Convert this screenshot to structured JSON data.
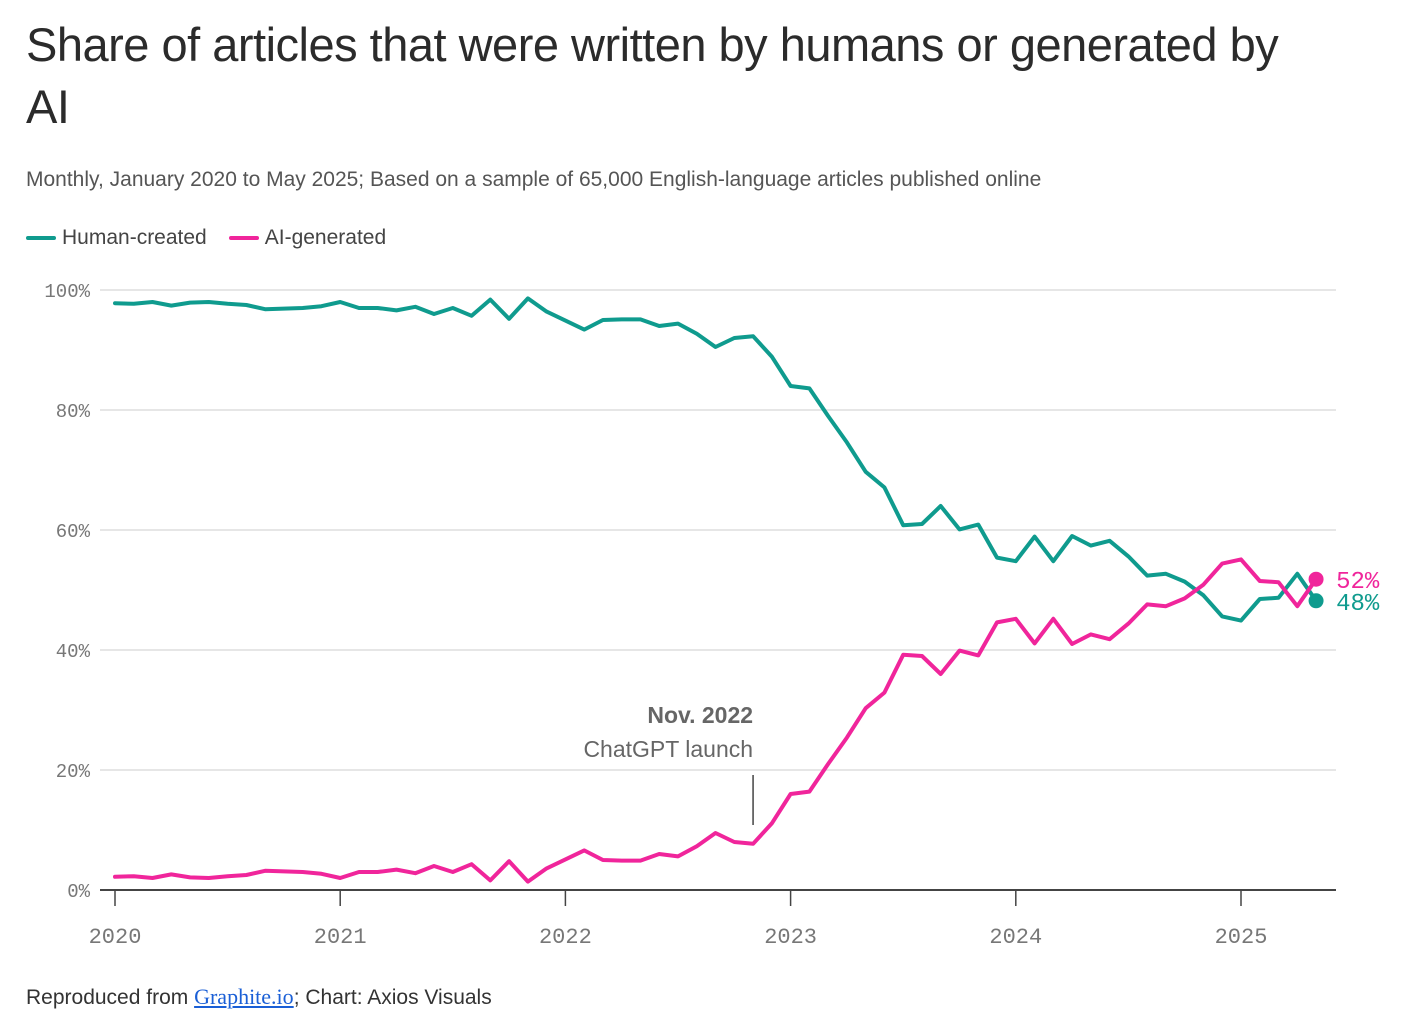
{
  "title": "Share of articles that were written by humans or generated by AI",
  "subtitle": "Monthly, January 2020 to May 2025; Based on a sample of 65,000 English-language articles published online",
  "footer": {
    "prefix": "Reproduced from ",
    "link": "Graphite.io",
    "suffix": "; Chart: Axios Visuals"
  },
  "colors": {
    "human": "#0f9b8e",
    "ai": "#f0259b",
    "grid": "#dddddd",
    "axis": "#444444"
  },
  "chart_data": {
    "type": "line",
    "title": "Share of articles that were written by humans or generated by AI",
    "xlabel": "",
    "ylabel": "",
    "ylim": [
      0,
      100
    ],
    "yticks": [
      0,
      20,
      40,
      60,
      80,
      100
    ],
    "ytick_labels": [
      "0%",
      "20%",
      "40%",
      "60%",
      "80%",
      "100%"
    ],
    "xticks": [
      2020,
      2021,
      2022,
      2023,
      2024,
      2025
    ],
    "xtick_labels": [
      "2020",
      "2021",
      "2022",
      "2023",
      "2024",
      "2025"
    ],
    "x_unit": "months since Jan 2020",
    "annotation": {
      "x": 34,
      "title": "Nov. 2022",
      "text": "ChatGPT launch"
    },
    "end_labels": {
      "ai": "52%",
      "human": "48%"
    },
    "series": [
      {
        "name": "Human-created",
        "key": "human",
        "values": [
          97.8,
          97.7,
          98.0,
          97.4,
          97.9,
          98.0,
          97.7,
          97.5,
          96.8,
          96.9,
          97.0,
          97.3,
          98.0,
          97.0,
          97.0,
          96.6,
          97.2,
          96.0,
          97.0,
          95.7,
          98.4,
          95.2,
          98.6,
          96.4,
          94.9,
          93.4,
          95.0,
          95.1,
          95.1,
          94.0,
          94.4,
          92.7,
          90.5,
          92.0,
          92.3,
          88.9,
          84.0,
          83.6,
          79.0,
          74.6,
          69.7,
          67.1,
          60.8,
          61.0,
          64.0,
          60.1,
          60.9,
          55.4,
          54.8,
          58.9,
          54.8,
          59.0,
          57.4,
          58.2,
          55.6,
          52.4,
          52.7,
          51.4,
          49.1,
          45.6,
          44.9,
          48.5,
          48.7,
          52.7,
          48.2
        ]
      },
      {
        "name": "AI-generated",
        "key": "ai",
        "values": [
          2.2,
          2.3,
          2.0,
          2.6,
          2.1,
          2.0,
          2.3,
          2.5,
          3.2,
          3.1,
          3.0,
          2.7,
          2.0,
          3.0,
          3.0,
          3.4,
          2.8,
          4.0,
          3.0,
          4.3,
          1.6,
          4.8,
          1.4,
          3.6,
          5.1,
          6.6,
          5.0,
          4.9,
          4.9,
          6.0,
          5.6,
          7.3,
          9.5,
          8.0,
          7.7,
          11.1,
          16.0,
          16.4,
          21.0,
          25.4,
          30.3,
          32.9,
          39.2,
          39.0,
          36.0,
          39.9,
          39.1,
          44.6,
          45.2,
          41.1,
          45.2,
          41.0,
          42.6,
          41.8,
          44.4,
          47.6,
          47.3,
          48.6,
          50.9,
          54.4,
          55.1,
          51.5,
          51.3,
          47.3,
          51.8
        ]
      }
    ]
  }
}
